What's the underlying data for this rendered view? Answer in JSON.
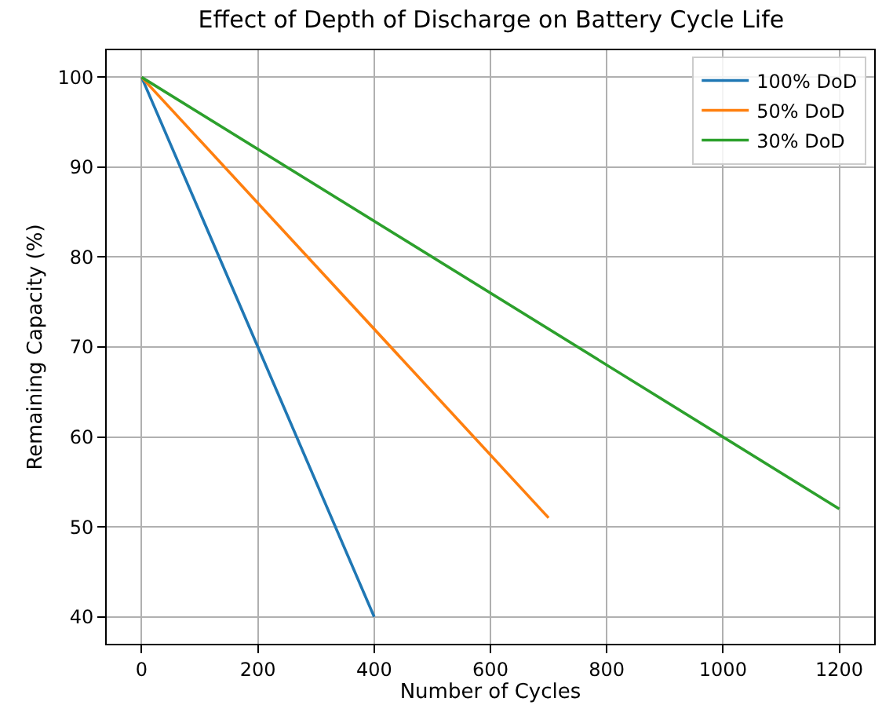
{
  "chart_data": {
    "type": "line",
    "title": "Effect of Depth of Discharge on Battery Cycle Life",
    "xlabel": "Number of Cycles",
    "ylabel": "Remaining Capacity (%)",
    "series": [
      {
        "name": "100% DoD",
        "color": "#1f77b4",
        "x": [
          0,
          400
        ],
        "values": [
          100,
          40
        ]
      },
      {
        "name": "50% DoD",
        "color": "#ff7f0e",
        "x": [
          0,
          700
        ],
        "values": [
          100,
          51
        ]
      },
      {
        "name": "30% DoD",
        "color": "#2ca02c",
        "x": [
          0,
          1200
        ],
        "values": [
          100,
          52
        ]
      }
    ],
    "xlim": [
      -60,
      1260
    ],
    "ylim": [
      37,
      103
    ],
    "xticks": [
      0,
      200,
      400,
      600,
      800,
      1000,
      1200
    ],
    "yticks": [
      40,
      50,
      60,
      70,
      80,
      90,
      100
    ],
    "grid": true,
    "legend": "top right",
    "marker": "none",
    "line_style": "solid"
  }
}
